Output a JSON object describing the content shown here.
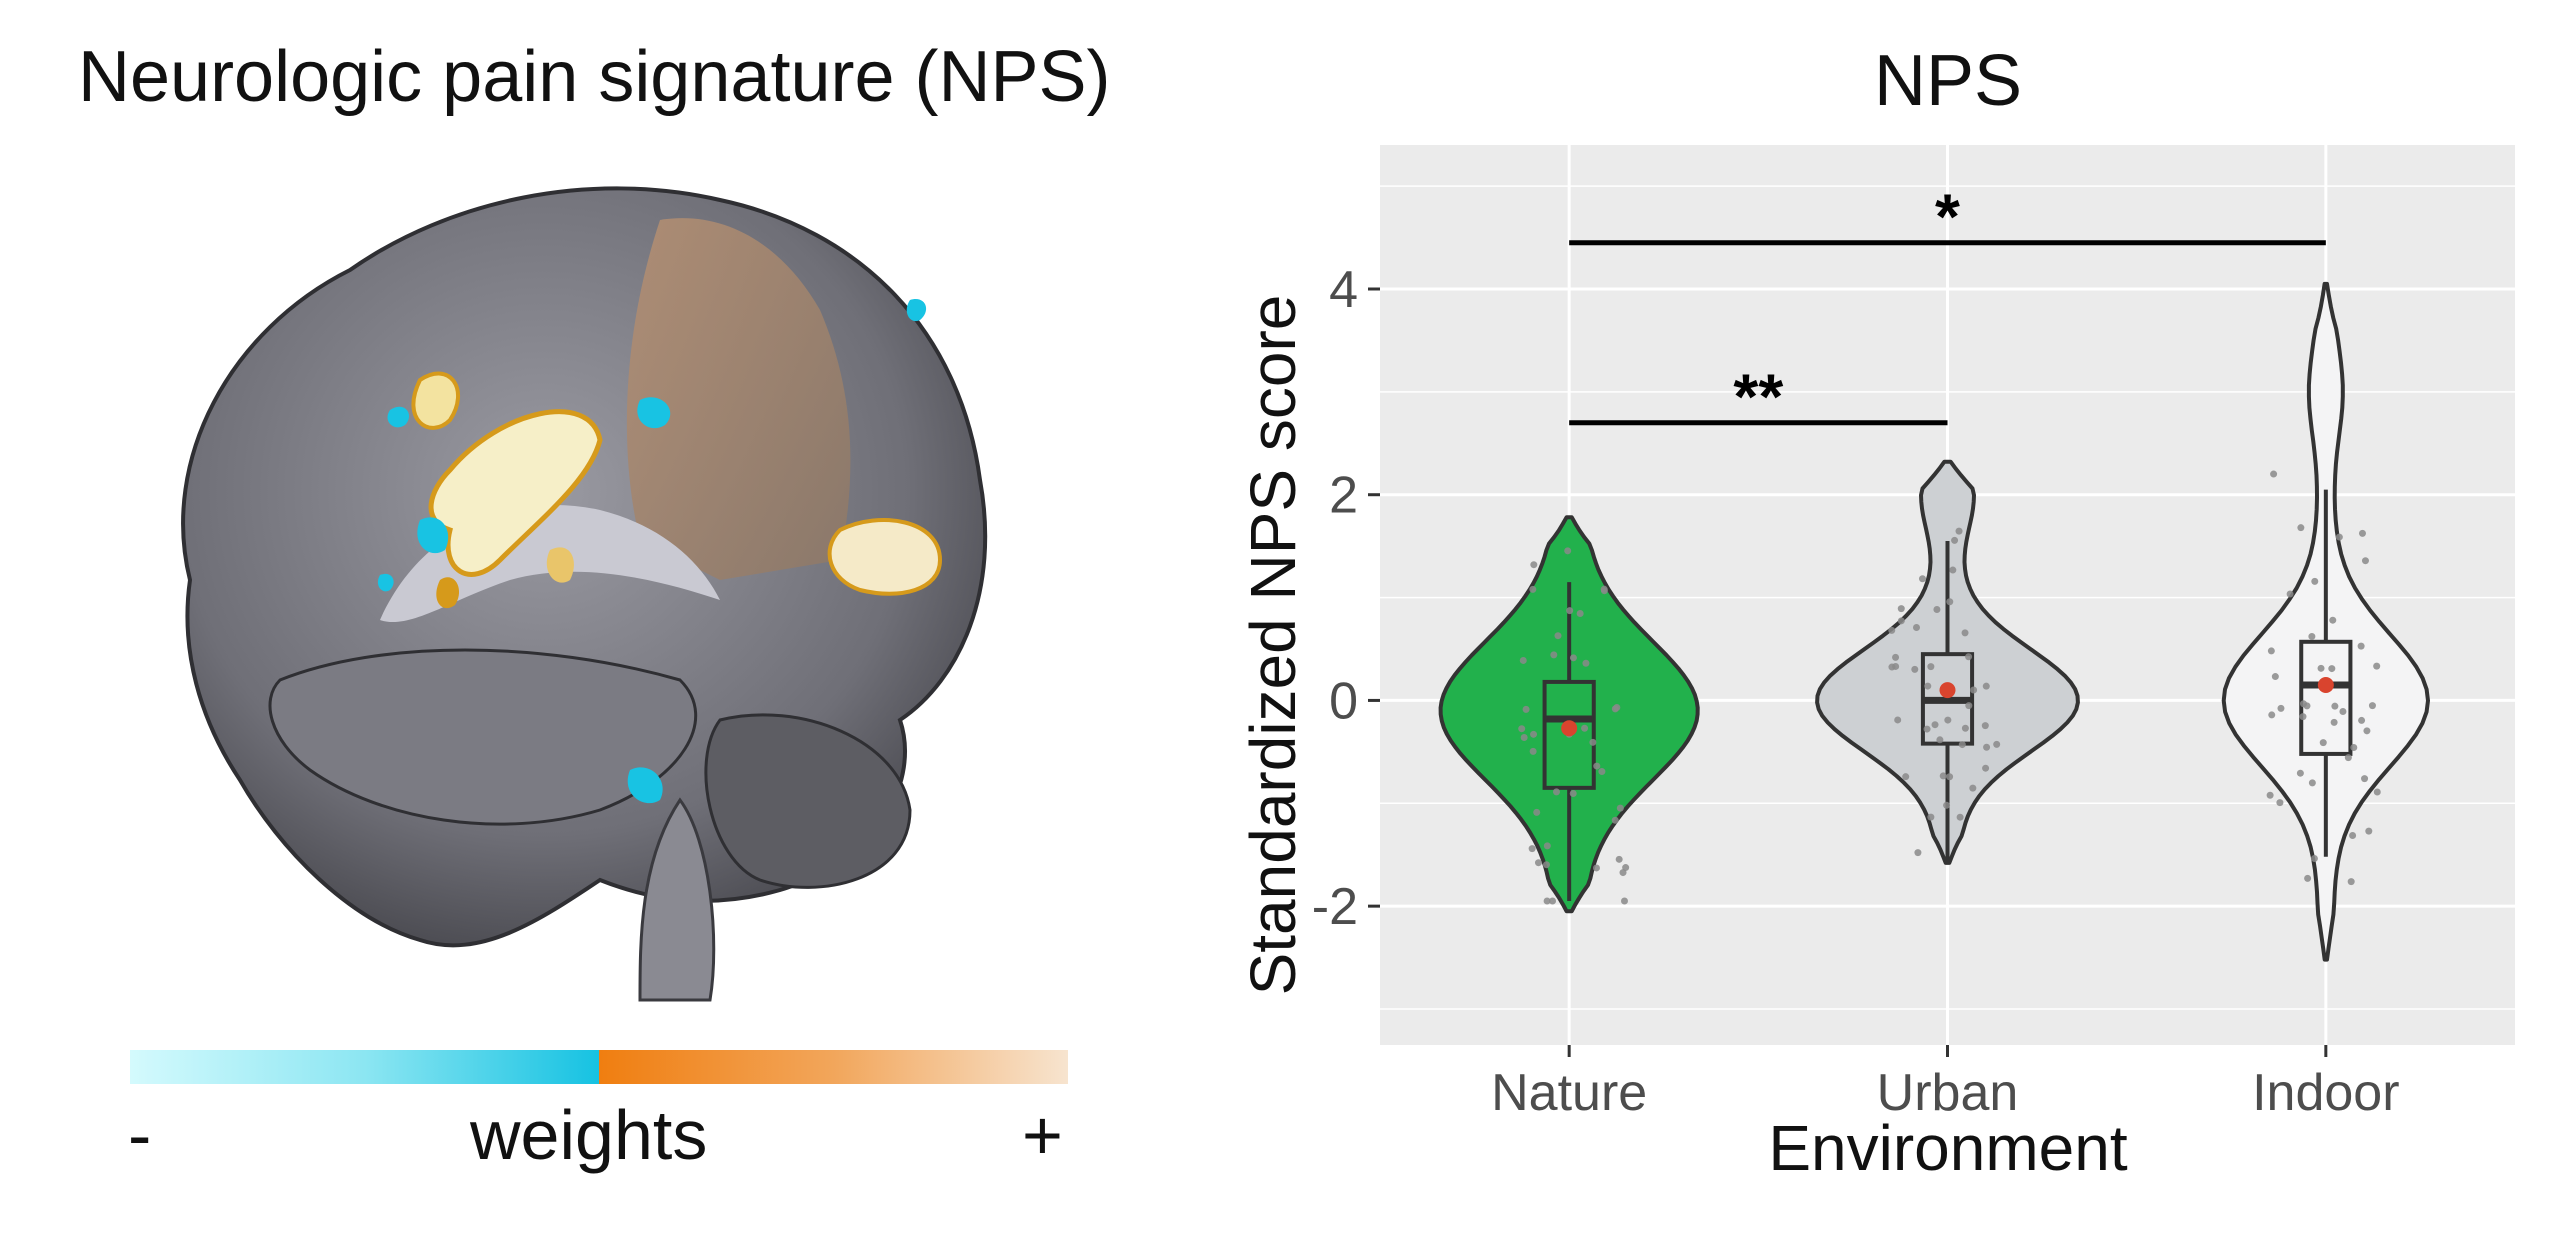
{
  "left_panel": {
    "title": "Neurologic pain signature (NPS)",
    "colorbar": {
      "min_label": "-",
      "title": "weights",
      "max_label": "+",
      "negative_colors": [
        "#d4fafd",
        "#16c2e2"
      ],
      "positive_colors": [
        "#f07e10",
        "#f7e4cf"
      ]
    }
  },
  "chart_data": {
    "type": "violin",
    "title": "NPS",
    "xlabel": "Environment",
    "ylabel": "Standardized NPS score",
    "categories": [
      "Nature",
      "Urban",
      "Indoor"
    ],
    "ylim": [
      -3.35,
      5.4
    ],
    "yticks": [
      -2,
      0,
      2,
      4
    ],
    "ytick_labels": [
      "-2",
      "0",
      "2",
      "4"
    ],
    "grid": true,
    "panel_background": "#ebebeb",
    "series": [
      {
        "category": "Nature",
        "fill": "#22b14c",
        "violin_min": -2.05,
        "violin_max": 1.78,
        "box": {
          "q1": -0.85,
          "median": -0.18,
          "q3": 0.18,
          "whisker_low": -1.95,
          "whisker_high": 1.15
        },
        "mean": -0.27
      },
      {
        "category": "Urban",
        "fill": "#cdd0d3",
        "violin_min": -1.58,
        "violin_max": 2.32,
        "box": {
          "q1": -0.42,
          "median": 0.0,
          "q3": 0.45,
          "whisker_low": -1.58,
          "whisker_high": 1.55
        },
        "mean": 0.1
      },
      {
        "category": "Indoor",
        "fill": "#f4f4f5",
        "violin_min": -2.52,
        "violin_max": 4.05,
        "box": {
          "q1": -0.52,
          "median": 0.15,
          "q3": 0.57,
          "whisker_low": -1.52,
          "whisker_high": 2.05
        },
        "mean": 0.15
      }
    ],
    "significance": [
      {
        "from": "Nature",
        "to": "Indoor",
        "y": 4.45,
        "label": "*"
      },
      {
        "from": "Nature",
        "to": "Urban",
        "y": 2.7,
        "label": "**"
      }
    ],
    "colors": {
      "mean_point": "#d9442e",
      "jitter": "#8a8a8a",
      "outline": "#333333"
    }
  }
}
